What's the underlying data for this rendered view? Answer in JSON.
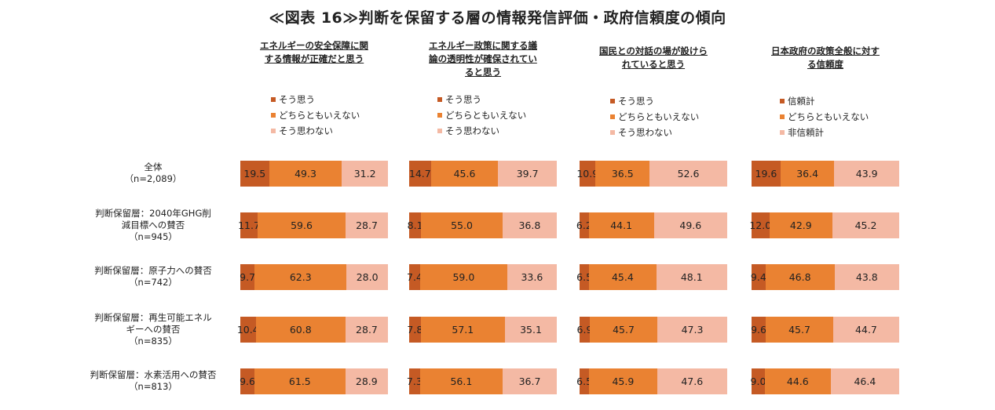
{
  "title": "≪図表 16≫判断を保留する層の情報発信評価・政府信頼度の傾向",
  "colors": {
    "segment1": "#c55a24",
    "segment2": "#ea8232",
    "segment3": "#f4b9a4"
  },
  "chart_data": [
    {
      "type": "bar",
      "stacked": true,
      "orientation": "horizontal",
      "title": "エネルギーの安全保障に関する情報が正確だと思う",
      "title_lines": [
        "エネルギーの安全保障に関",
        "する情報が正確だと思う"
      ],
      "categories": [
        "全体（n=2,089）",
        "判断保留層：2040年GHG削減目標への賛否（n=945）",
        "判断保留層：原子力への賛否（n=742）",
        "判断保留層：再生可能エネルギーへの賛否（n=835）",
        "判断保留層：水素活用への賛否（n=813）"
      ],
      "series": [
        {
          "name": "そう思う",
          "values": [
            19.5,
            11.7,
            9.7,
            10.4,
            9.6
          ]
        },
        {
          "name": "どちらともいえない",
          "values": [
            49.3,
            59.6,
            62.3,
            60.8,
            61.5
          ]
        },
        {
          "name": "そう思わない",
          "values": [
            31.2,
            28.7,
            28.0,
            28.7,
            28.9
          ]
        }
      ],
      "xlim": [
        0,
        100
      ]
    },
    {
      "type": "bar",
      "stacked": true,
      "orientation": "horizontal",
      "title": "エネルギー政策に関する議論の透明性が確保されていると思う",
      "title_lines": [
        "エネルギー政策に関する議",
        "論の透明性が確保されてい",
        "ると思う"
      ],
      "categories": [
        "全体（n=2,089）",
        "判断保留層：2040年GHG削減目標への賛否（n=945）",
        "判断保留層：原子力への賛否（n=742）",
        "判断保留層：再生可能エネルギーへの賛否（n=835）",
        "判断保留層：水素活用への賛否（n=813）"
      ],
      "series": [
        {
          "name": "そう思う",
          "values": [
            14.7,
            8.1,
            7.4,
            7.8,
            7.3
          ]
        },
        {
          "name": "どちらともいえない",
          "values": [
            45.6,
            55.0,
            59.0,
            57.1,
            56.1
          ]
        },
        {
          "name": "そう思わない",
          "values": [
            39.7,
            36.8,
            33.6,
            35.1,
            36.7
          ]
        }
      ],
      "xlim": [
        0,
        100
      ]
    },
    {
      "type": "bar",
      "stacked": true,
      "orientation": "horizontal",
      "title": "国民との対話の場が設けられていると思う",
      "title_lines": [
        "国民との対話の場が設けら",
        "れていると思う"
      ],
      "categories": [
        "全体（n=2,089）",
        "判断保留層：2040年GHG削減目標への賛否（n=945）",
        "判断保留層：原子力への賛否（n=742）",
        "判断保留層：再生可能エネルギーへの賛否（n=835）",
        "判断保留層：水素活用への賛否（n=813）"
      ],
      "series": [
        {
          "name": "そう思う",
          "values": [
            10.9,
            6.2,
            6.5,
            6.9,
            6.5
          ]
        },
        {
          "name": "どちらともいえない",
          "values": [
            36.5,
            44.1,
            45.4,
            45.7,
            45.9
          ]
        },
        {
          "name": "そう思わない",
          "values": [
            52.6,
            49.6,
            48.1,
            47.3,
            47.6
          ]
        }
      ],
      "xlim": [
        0,
        100
      ]
    },
    {
      "type": "bar",
      "stacked": true,
      "orientation": "horizontal",
      "title": "日本政府の政策全般に対する信頼度",
      "title_lines": [
        "日本政府の政策全般に対す",
        "る信頼度"
      ],
      "categories": [
        "全体（n=2,089）",
        "判断保留層：2040年GHG削減目標への賛否（n=945）",
        "判断保留層：原子力への賛否（n=742）",
        "判断保留層：再生可能エネルギーへの賛否（n=835）",
        "判断保留層：水素活用への賛否（n=813）"
      ],
      "series": [
        {
          "name": "信頼計",
          "values": [
            19.6,
            12.0,
            9.4,
            9.6,
            9.0
          ]
        },
        {
          "name": "どちらともいえない",
          "values": [
            36.4,
            42.9,
            46.8,
            45.7,
            44.6
          ]
        },
        {
          "name": "非信頼計",
          "values": [
            43.9,
            45.2,
            43.8,
            44.7,
            46.4
          ]
        }
      ],
      "xlim": [
        0,
        100
      ]
    }
  ],
  "row_labels": [
    [
      "全体",
      "（n=2,089）"
    ],
    [
      "判断保留層：2040年GHG削",
      "減目標への賛否",
      "（n=945）"
    ],
    [
      "判断保留層：原子力への賛否",
      "（n=742）"
    ],
    [
      "判断保留層：再生可能エネル",
      "ギーへの賛否",
      "（n=835）"
    ],
    [
      "判断保留層：水素活用への賛否",
      "（n=813）"
    ]
  ]
}
